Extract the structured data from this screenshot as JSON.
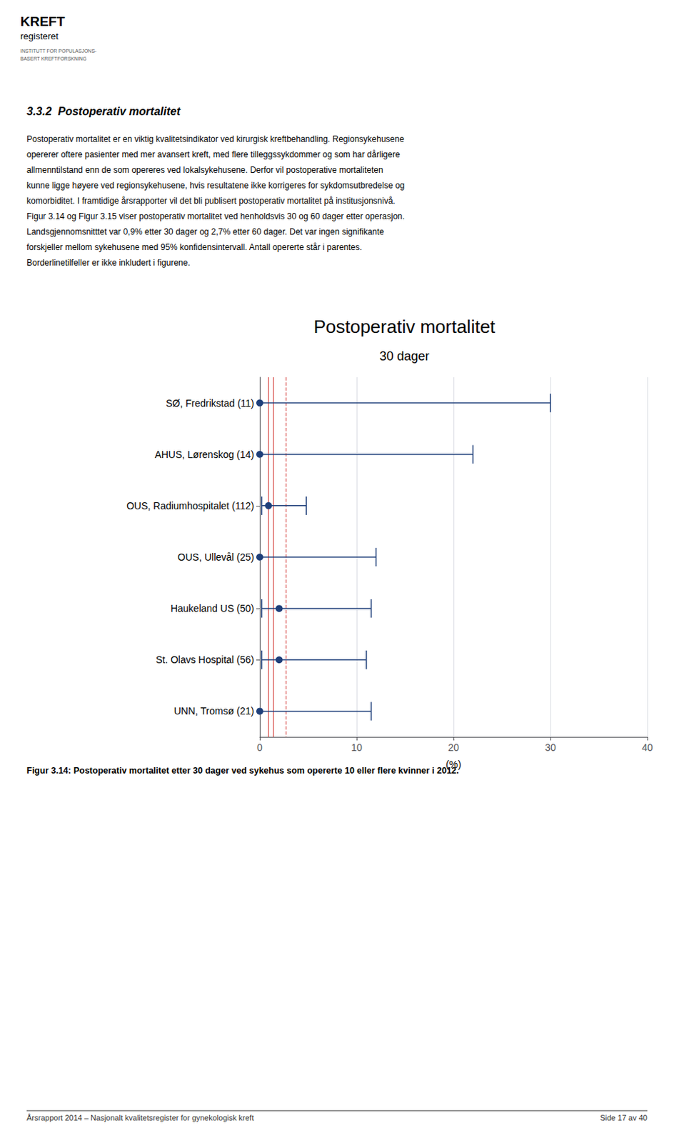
{
  "chart_data": {
    "type": "forest",
    "title": "Postoperativ mortalitet",
    "subtitle": "30 dager",
    "xlabel": "(%)",
    "categories": [
      "SØ, Fredrikstad (11)",
      "AHUS, Lørenskog (14)",
      "OUS, Radiumhospitalet (112)",
      "OUS, Ullevål (25)",
      "Haukeland US (50)",
      "St. Olavs Hospital (56)",
      "UNN, Tromsø (21)"
    ],
    "values": [
      0.0,
      0.0,
      0.9,
      0.0,
      2.0,
      2.0,
      0.0
    ],
    "ci_lower": [
      0.0,
      0.0,
      0.2,
      0.0,
      0.2,
      0.2,
      0.0
    ],
    "ci_upper": [
      30.0,
      22.0,
      4.8,
      12.0,
      11.5,
      11.0,
      11.5
    ],
    "color": "#1f3f7a",
    "marker": "circle",
    "ref_lines": [
      {
        "value": 0.9,
        "color": "#d9534f",
        "line_style": "solid"
      },
      {
        "value": 1.4,
        "color": "#d9534f",
        "line_style": "solid"
      },
      {
        "value": 2.7,
        "color": "#d9534f",
        "line_style": "dashed"
      }
    ],
    "xlim": [
      0,
      40
    ],
    "xticks": [
      0,
      10,
      20,
      30,
      40
    ],
    "grid": true,
    "annotations": {
      "logo": [
        "KREFT",
        "registeret",
        "INSTITUTT FOR POPULASJONS-",
        "BASERT KREFTFORSKNING"
      ],
      "section_title": "3.3.2  Postoperativ mortalitet",
      "body": [
        "Postoperativ mortalitet er en viktig kvalitetsindikator ved kirurgisk kreftbehandling. Regionsykehusene",
        "opererer oftere pasienter med mer avansert kreft, med flere tilleggssykdommer og som har dårligere",
        "allmenntilstand enn de som opereres ved lokalsykehusene. Derfor vil postoperative mortaliteten",
        "kunne ligge høyere ved regionsykehusene, hvis resultatene ikke korrigeres for sykdomsutbredelse og",
        "komorbiditet. I framtidige årsrapporter vil det bli publisert postoperativ mortalitet på institusjonsnivå.",
        "Figur 3.14 og Figur 3.15 viser postoperativ mortalitet ved henholdsvis 30 og 60 dager etter operasjon.",
        "Landsgjennomsnitttet var 0,9% etter 30 dager og 2,7% etter 60 dager. Det var ingen signifikante",
        "forskjeller mellom sykehusene med 95% konfidensintervall. Antall opererte står i parentes.",
        "Borderlinetilfeller er ikke inkludert i figurene."
      ],
      "caption": "Figur 3.14: Postoperativ mortalitet etter 30 dager ved sykehus som opererte 10 eller flere kvinner i 2012.",
      "footer_left": "Årsrapport 2014 – Nasjonalt kvalitetsregister for gynekologisk kreft",
      "footer_right": "Side 17 av 40"
    }
  }
}
